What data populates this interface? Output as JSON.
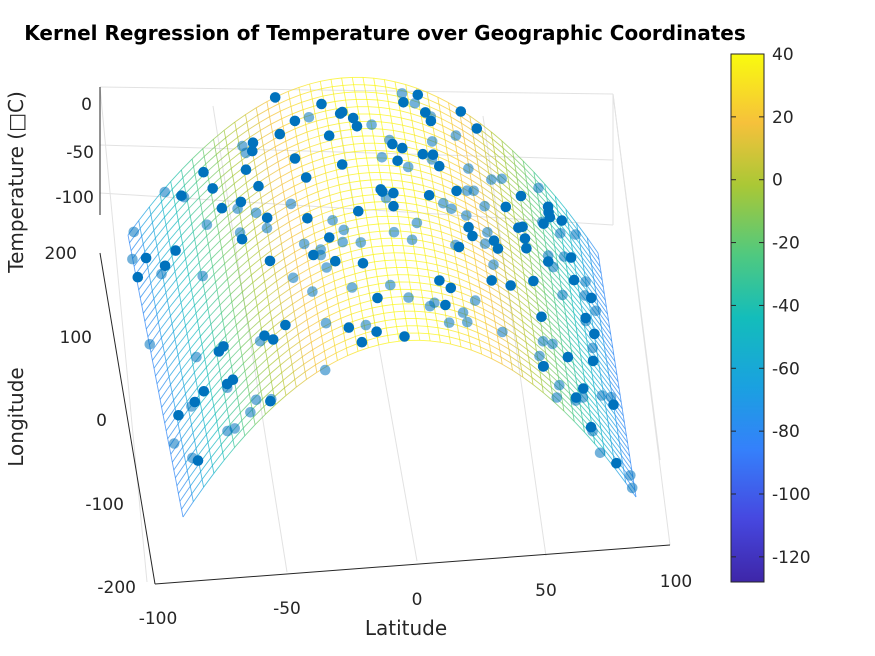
{
  "chart_data": {
    "type": "3d-surface-scatter",
    "title": "Kernel Regression of Temperature over Geographic Coordinates",
    "xlabel": "Latitude",
    "ylabel": "Longitude",
    "zlabel": "Temperature (□C)",
    "xlim": [
      -100,
      100
    ],
    "ylim": [
      -200,
      200
    ],
    "zlim": [
      -130,
      0
    ],
    "x_ticks": [
      "-100",
      "-50",
      "0",
      "50",
      "100"
    ],
    "y_ticks": [
      "-200",
      "-100",
      "0",
      "100",
      "200"
    ],
    "z_ticks": [
      "0",
      "-50",
      "-100"
    ],
    "colorbar": {
      "range": [
        -128,
        40
      ],
      "ticks": [
        "40",
        "20",
        "0",
        "-20",
        "-40",
        "-60",
        "-80",
        "-100",
        "-120"
      ],
      "colormap": "parula"
    },
    "surface": {
      "description": "temperature peaks near latitude 0 and falls off toward the poles",
      "model": "T = 38 - 0.0149 * lat^2",
      "lat_range": [
        -90,
        90
      ],
      "lon_range": [
        -180,
        180
      ]
    },
    "scatter_color": "#0072BD",
    "grid": true
  }
}
